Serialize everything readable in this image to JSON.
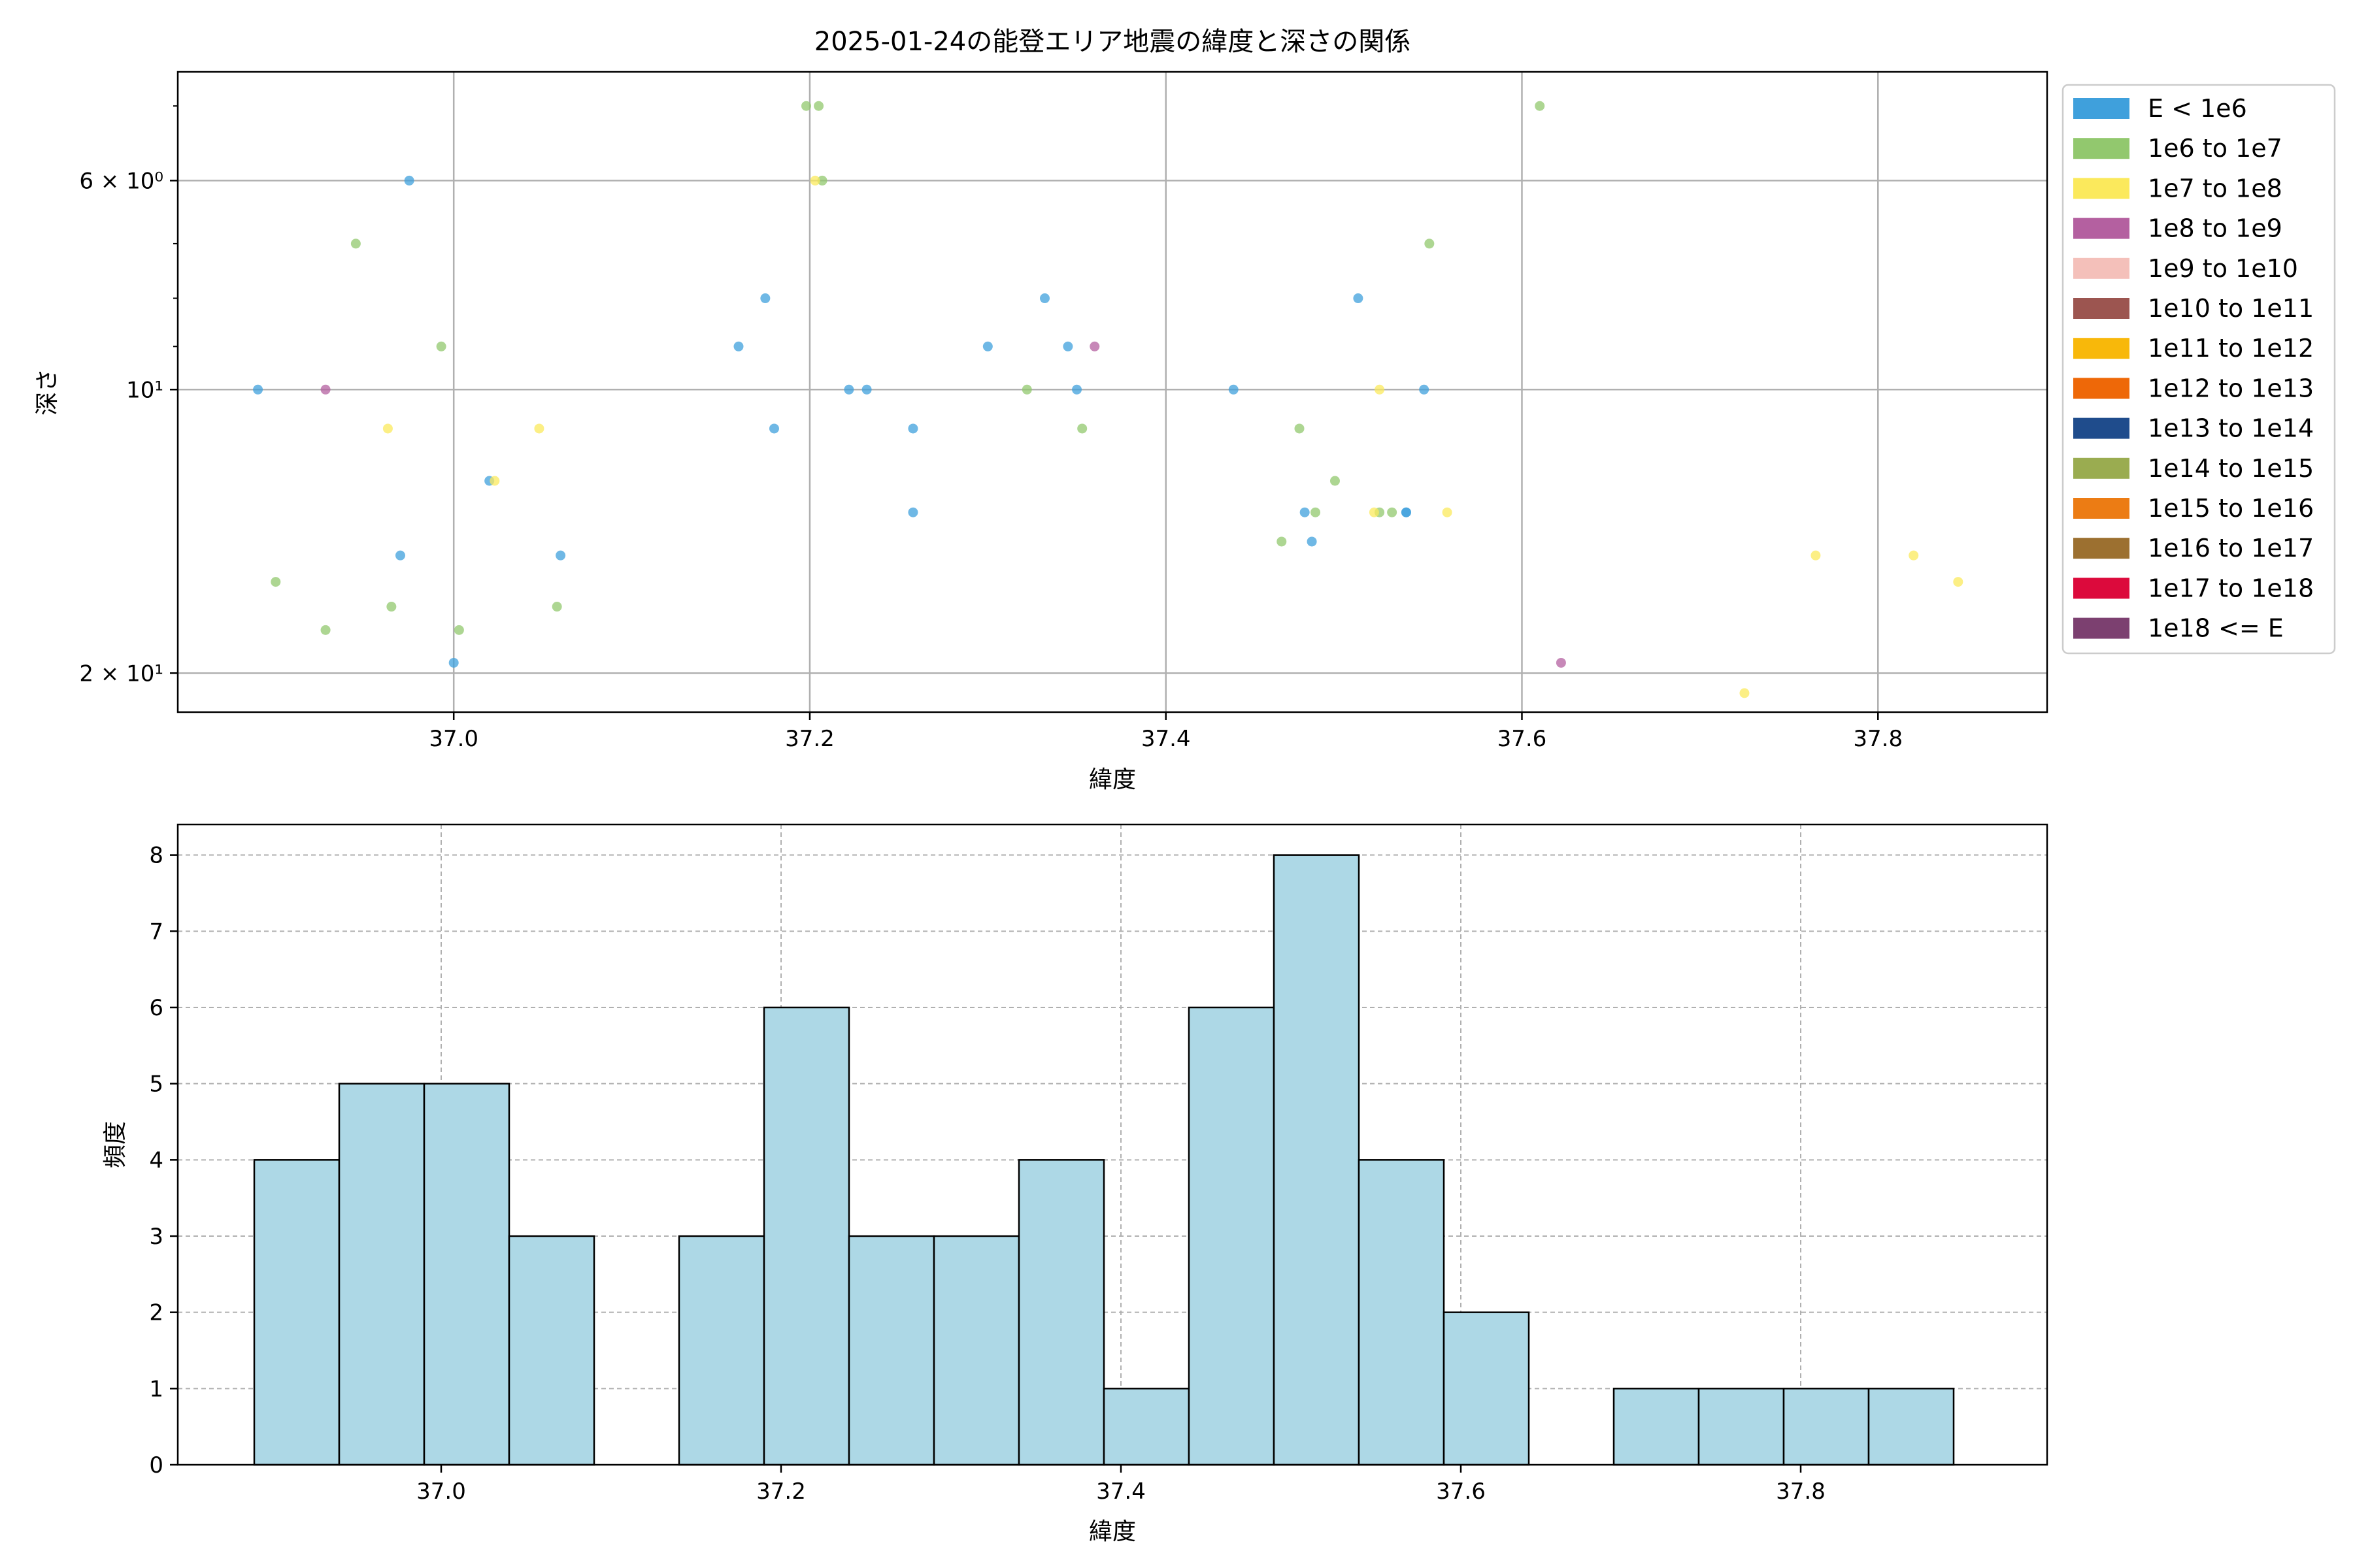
{
  "scatter": {
    "title": "2025-01-24の能登エリア地震の緯度と深さの関係",
    "xlabel": "緯度",
    "ylabel": "深さ",
    "ytick_labels": {
      "6": "6 × 10⁰",
      "10": "10¹",
      "20": "2 × 10¹"
    },
    "xticks": [
      37.0,
      37.2,
      37.4,
      37.6,
      37.8
    ]
  },
  "histogram": {
    "xlabel": "緯度",
    "ylabel": "頻度",
    "xticks": [
      37.0,
      37.2,
      37.4,
      37.6,
      37.8
    ],
    "yticks": [
      0,
      1,
      2,
      3,
      4,
      5,
      6,
      7,
      8
    ]
  },
  "legend": [
    {
      "label": "E < 1e6",
      "color": "#3fa0dc"
    },
    {
      "label": "1e6 to 1e7",
      "color": "#92c86e"
    },
    {
      "label": "1e7 to 1e8",
      "color": "#fbe95c"
    },
    {
      "label": "1e8 to 1e9",
      "color": "#b460a0"
    },
    {
      "label": "1e9 to 1e10",
      "color": "#f4c0ba"
    },
    {
      "label": "1e10 to 1e11",
      "color": "#9c5550"
    },
    {
      "label": "1e11 to 1e12",
      "color": "#f8b80a"
    },
    {
      "label": "1e12 to 1e13",
      "color": "#ee6808"
    },
    {
      "label": "1e13 to 1e14",
      "color": "#1f4c8c"
    },
    {
      "label": "1e14 to 1e15",
      "color": "#9aac50"
    },
    {
      "label": "1e15 to 1e16",
      "color": "#ec7c14"
    },
    {
      "label": "1e16 to 1e17",
      "color": "#9c7030"
    },
    {
      "label": "1e17 to 1e18",
      "color": "#dc0a3c"
    },
    {
      "label": "1e18 <= E",
      "color": "#7c4070"
    }
  ],
  "chart_data": [
    {
      "type": "scatter",
      "title": "2025-01-24の能登エリア地震の緯度と深さの関係",
      "xlabel": "緯度",
      "ylabel": "深さ",
      "xlim": [
        36.845,
        37.895
      ],
      "ylim": [
        22,
        4.6
      ],
      "yscale": "log",
      "y_inverted": true,
      "grid": true,
      "legend_position": "outside-right",
      "series": [
        {
          "name": "E < 1e6",
          "color": "#3fa0dc",
          "points": [
            [
              36.89,
              10
            ],
            [
              36.975,
              6
            ],
            [
              36.97,
              15
            ],
            [
              37.0,
              19.5
            ],
            [
              37.02,
              12.5
            ],
            [
              37.06,
              15
            ],
            [
              37.16,
              9
            ],
            [
              37.175,
              8
            ],
            [
              37.18,
              11
            ],
            [
              37.222,
              10
            ],
            [
              37.232,
              10
            ],
            [
              37.258,
              11
            ],
            [
              37.258,
              13.5
            ],
            [
              37.3,
              9
            ],
            [
              37.332,
              8
            ],
            [
              37.345,
              9
            ],
            [
              37.35,
              10
            ],
            [
              37.438,
              10
            ],
            [
              37.478,
              13.5
            ],
            [
              37.482,
              14.5
            ],
            [
              37.508,
              8
            ],
            [
              37.535,
              13.5
            ],
            [
              37.535,
              13.5
            ],
            [
              37.545,
              10
            ]
          ]
        },
        {
          "name": "1e6 to 1e7",
          "color": "#92c86e",
          "points": [
            [
              36.9,
              16
            ],
            [
              36.928,
              18
            ],
            [
              36.945,
              7
            ],
            [
              36.965,
              17
            ],
            [
              36.993,
              9
            ],
            [
              37.003,
              18
            ],
            [
              37.058,
              17
            ],
            [
              37.198,
              5
            ],
            [
              37.205,
              5
            ],
            [
              37.207,
              6
            ],
            [
              37.322,
              10
            ],
            [
              37.353,
              11
            ],
            [
              37.465,
              14.5
            ],
            [
              37.475,
              11
            ],
            [
              37.484,
              13.5
            ],
            [
              37.495,
              12.5
            ],
            [
              37.52,
              13.5
            ],
            [
              37.527,
              13.5
            ],
            [
              37.548,
              7
            ],
            [
              37.61,
              5
            ]
          ]
        },
        {
          "name": "1e7 to 1e8",
          "color": "#fbe95c",
          "points": [
            [
              36.963,
              11
            ],
            [
              37.023,
              12.5
            ],
            [
              37.048,
              11
            ],
            [
              37.203,
              6
            ],
            [
              37.517,
              13.5
            ],
            [
              37.52,
              10
            ],
            [
              37.558,
              13.5
            ],
            [
              37.725,
              21
            ],
            [
              37.765,
              15
            ],
            [
              37.82,
              15
            ],
            [
              37.845,
              16
            ]
          ]
        },
        {
          "name": "1e8 to 1e9",
          "color": "#b460a0",
          "points": [
            [
              36.928,
              10
            ],
            [
              37.36,
              9
            ],
            [
              37.622,
              19.5
            ]
          ]
        }
      ]
    },
    {
      "type": "bar",
      "xlabel": "緯度",
      "ylabel": "頻度",
      "xlim": [
        36.845,
        37.945
      ],
      "ylim": [
        0,
        8.4
      ],
      "grid": true,
      "bin_edges": [
        36.89,
        36.94,
        36.99,
        37.04,
        37.09,
        37.14,
        37.19,
        37.24,
        37.29,
        37.34,
        37.39,
        37.44,
        37.49,
        37.54,
        37.59,
        37.64,
        37.69,
        37.74,
        37.79,
        37.84,
        37.89
      ],
      "values": [
        4,
        5,
        5,
        3,
        0,
        3,
        6,
        3,
        3,
        4,
        1,
        6,
        8,
        4,
        2,
        0,
        1,
        1,
        1,
        1
      ],
      "color": "#add8e6"
    }
  ]
}
